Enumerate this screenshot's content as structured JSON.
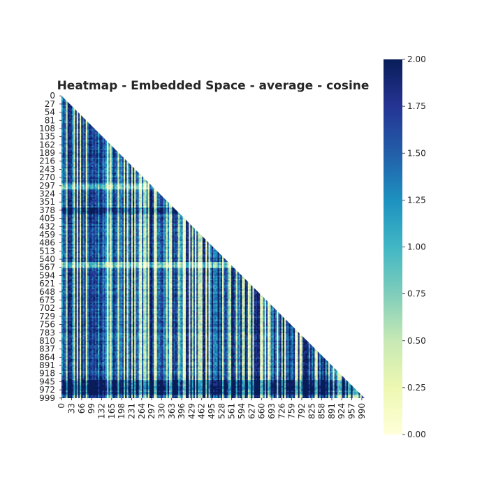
{
  "chart_data": {
    "type": "heatmap",
    "title": "Heatmap - Embedded Space - average - cosine",
    "xlabel": "",
    "ylabel": "",
    "mask": "upper-triangle",
    "matrix_size": 1000,
    "y_tick_labels": [
      "0",
      "27",
      "54",
      "81",
      "108",
      "135",
      "162",
      "189",
      "216",
      "243",
      "270",
      "297",
      "324",
      "351",
      "378",
      "405",
      "432",
      "459",
      "486",
      "513",
      "540",
      "567",
      "594",
      "621",
      "648",
      "675",
      "702",
      "729",
      "756",
      "783",
      "810",
      "837",
      "864",
      "891",
      "918",
      "945",
      "972",
      "999"
    ],
    "x_tick_labels": [
      "0",
      "33",
      "66",
      "99",
      "132",
      "165",
      "198",
      "231",
      "264",
      "297",
      "330",
      "363",
      "396",
      "429",
      "462",
      "495",
      "528",
      "561",
      "594",
      "627",
      "660",
      "693",
      "726",
      "759",
      "792",
      "825",
      "858",
      "891",
      "924",
      "957",
      "990"
    ],
    "colorbar": {
      "colormap": "YlGnBu",
      "range": [
        0,
        2
      ],
      "ticks": [
        "0.00",
        "0.25",
        "0.50",
        "0.75",
        "1.00",
        "1.25",
        "1.50",
        "1.75",
        "2.00"
      ]
    },
    "grid": false,
    "legend": "colorbar-right"
  }
}
